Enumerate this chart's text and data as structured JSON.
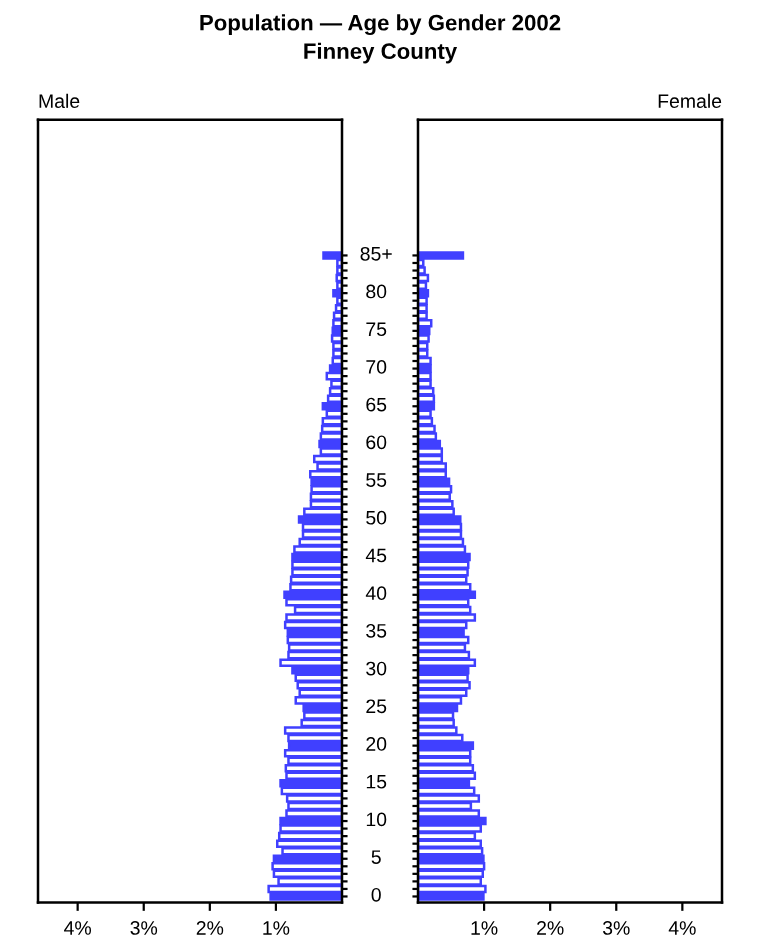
{
  "chart_data": [
    {
      "type": "bar",
      "orientation": "horizontal",
      "title": "Population — Age by Gender 2002",
      "subtitle": "Finney County",
      "annotations": [
        "Male"
      ],
      "categories": [
        "85+",
        null,
        null,
        null,
        null,
        "80",
        null,
        null,
        null,
        null,
        "75",
        null,
        null,
        null,
        null,
        "70",
        null,
        null,
        null,
        null,
        "65",
        null,
        null,
        null,
        null,
        "60",
        null,
        null,
        null,
        null,
        "55",
        null,
        null,
        null,
        null,
        "50",
        null,
        null,
        null,
        null,
        "45",
        null,
        null,
        null,
        null,
        "40",
        null,
        null,
        null,
        null,
        "35",
        null,
        null,
        null,
        null,
        "30",
        null,
        null,
        null,
        null,
        "25",
        null,
        null,
        null,
        null,
        "20",
        null,
        null,
        null,
        null,
        "15",
        null,
        null,
        null,
        null,
        "10",
        null,
        null,
        null,
        null,
        "5",
        null,
        null,
        null,
        null,
        "0"
      ],
      "series": [
        {
          "color": "#4040ff",
          "values": [
            0.28,
            0.07,
            0.07,
            0.08,
            0.07,
            0.13,
            0.07,
            0.09,
            0.12,
            0.13,
            0.14,
            0.15,
            0.13,
            0.13,
            0.14,
            0.18,
            0.23,
            0.16,
            0.18,
            0.21,
            0.29,
            0.23,
            0.29,
            0.3,
            0.32,
            0.34,
            0.32,
            0.42,
            0.37,
            0.48,
            0.46,
            0.46,
            0.47,
            0.47,
            0.57,
            0.65,
            0.59,
            0.59,
            0.64,
            0.72,
            0.75,
            0.75,
            0.75,
            0.77,
            0.78,
            0.87,
            0.84,
            0.71,
            0.84,
            0.86,
            0.82,
            0.82,
            0.8,
            0.81,
            0.93,
            0.75,
            0.7,
            0.67,
            0.64,
            0.7,
            0.58,
            0.57,
            0.61,
            0.86,
            0.81,
            0.8,
            0.86,
            0.81,
            0.85,
            0.84,
            0.93,
            0.91,
            0.83,
            0.81,
            0.84,
            0.93,
            0.93,
            0.95,
            0.98,
            0.9,
            1.03,
            1.05,
            1.03,
            0.96,
            1.11,
            1.08
          ],
          "colors": [
            "#4040ff",
            "#ffffff",
            "#ffffff",
            "#ffffff",
            "#ffffff",
            "#4040ff",
            "#ffffff",
            "#ffffff",
            "#ffffff",
            "#ffffff",
            "#4040ff",
            "#ffffff",
            "#ffffff",
            "#ffffff",
            "#ffffff",
            "#4040ff",
            "#ffffff",
            "#ffffff",
            "#ffffff",
            "#ffffff",
            "#4040ff",
            "#ffffff",
            "#ffffff",
            "#ffffff",
            "#ffffff",
            "#4040ff",
            "#ffffff",
            "#ffffff",
            "#ffffff",
            "#ffffff",
            "#4040ff",
            "#ffffff",
            "#ffffff",
            "#ffffff",
            "#ffffff",
            "#4040ff",
            "#ffffff",
            "#ffffff",
            "#ffffff",
            "#ffffff",
            "#4040ff",
            "#ffffff",
            "#ffffff",
            "#ffffff",
            "#ffffff",
            "#4040ff",
            "#ffffff",
            "#ffffff",
            "#ffffff",
            "#ffffff",
            "#4040ff",
            "#ffffff",
            "#ffffff",
            "#ffffff",
            "#ffffff",
            "#4040ff",
            "#ffffff",
            "#ffffff",
            "#ffffff",
            "#ffffff",
            "#4040ff",
            "#ffffff",
            "#ffffff",
            "#ffffff",
            "#ffffff",
            "#4040ff",
            "#ffffff",
            "#ffffff",
            "#ffffff",
            "#ffffff",
            "#4040ff",
            "#ffffff",
            "#ffffff",
            "#ffffff",
            "#ffffff",
            "#4040ff",
            "#ffffff",
            "#ffffff",
            "#ffffff",
            "#ffffff",
            "#4040ff",
            "#ffffff",
            "#ffffff",
            "#ffffff",
            "#ffffff",
            "#4040ff"
          ]
        }
      ],
      "xlim": [
        4.6,
        0
      ],
      "xticks": [
        {
          "value": 4,
          "label": "4%"
        },
        {
          "value": 3,
          "label": "3%"
        },
        {
          "value": 2,
          "label": "2%"
        },
        {
          "value": 1,
          "label": "1%"
        }
      ],
      "grid": false
    },
    {
      "type": "bar",
      "orientation": "horizontal",
      "annotations": [
        "Female"
      ],
      "tick_labels": "x",
      "categories": [
        null,
        null,
        null,
        null,
        null,
        null,
        null,
        null,
        null,
        null,
        null,
        null,
        null,
        null,
        null,
        null,
        null,
        null,
        null,
        null,
        null,
        null,
        null,
        null,
        null,
        null,
        null,
        null,
        null,
        null,
        null,
        null,
        null,
        null,
        null,
        null,
        null,
        null,
        null,
        null,
        null,
        null,
        null,
        null,
        null,
        null,
        null,
        null,
        null,
        null,
        null,
        null,
        null,
        null,
        null,
        null,
        null,
        null,
        null,
        null,
        null,
        null,
        null,
        null,
        null,
        null,
        null,
        null,
        null,
        null,
        null,
        null,
        null,
        null,
        null,
        null,
        null,
        null,
        null,
        null,
        null,
        null,
        null,
        null,
        null,
        null
      ],
      "series": [
        {
          "color": "#4040ff",
          "values": [
            0.68,
            0.08,
            0.1,
            0.15,
            0.12,
            0.15,
            0.13,
            0.13,
            0.13,
            0.2,
            0.17,
            0.16,
            0.14,
            0.14,
            0.19,
            0.19,
            0.19,
            0.19,
            0.23,
            0.24,
            0.24,
            0.19,
            0.21,
            0.25,
            0.27,
            0.33,
            0.36,
            0.36,
            0.42,
            0.42,
            0.47,
            0.5,
            0.48,
            0.52,
            0.54,
            0.64,
            0.65,
            0.65,
            0.68,
            0.71,
            0.78,
            0.76,
            0.75,
            0.73,
            0.79,
            0.86,
            0.76,
            0.79,
            0.86,
            0.73,
            0.69,
            0.76,
            0.71,
            0.77,
            0.86,
            0.76,
            0.75,
            0.78,
            0.73,
            0.65,
            0.59,
            0.53,
            0.54,
            0.58,
            0.67,
            0.83,
            0.79,
            0.79,
            0.83,
            0.86,
            0.77,
            0.85,
            0.92,
            0.8,
            0.92,
            1.02,
            0.95,
            0.86,
            0.95,
            0.97,
            0.99,
            1.0,
            0.98,
            0.95,
            1.02,
            0.99
          ],
          "colors": [
            "#4040ff",
            "#ffffff",
            "#ffffff",
            "#ffffff",
            "#ffffff",
            "#4040ff",
            "#ffffff",
            "#ffffff",
            "#ffffff",
            "#ffffff",
            "#4040ff",
            "#ffffff",
            "#ffffff",
            "#ffffff",
            "#ffffff",
            "#4040ff",
            "#ffffff",
            "#ffffff",
            "#ffffff",
            "#ffffff",
            "#4040ff",
            "#ffffff",
            "#ffffff",
            "#ffffff",
            "#ffffff",
            "#4040ff",
            "#ffffff",
            "#ffffff",
            "#ffffff",
            "#ffffff",
            "#4040ff",
            "#ffffff",
            "#ffffff",
            "#ffffff",
            "#ffffff",
            "#4040ff",
            "#ffffff",
            "#ffffff",
            "#ffffff",
            "#ffffff",
            "#4040ff",
            "#ffffff",
            "#ffffff",
            "#ffffff",
            "#ffffff",
            "#4040ff",
            "#ffffff",
            "#ffffff",
            "#ffffff",
            "#ffffff",
            "#4040ff",
            "#ffffff",
            "#ffffff",
            "#ffffff",
            "#ffffff",
            "#4040ff",
            "#ffffff",
            "#ffffff",
            "#ffffff",
            "#ffffff",
            "#4040ff",
            "#ffffff",
            "#ffffff",
            "#ffffff",
            "#ffffff",
            "#4040ff",
            "#ffffff",
            "#ffffff",
            "#ffffff",
            "#ffffff",
            "#4040ff",
            "#ffffff",
            "#ffffff",
            "#ffffff",
            "#ffffff",
            "#4040ff",
            "#ffffff",
            "#ffffff",
            "#ffffff",
            "#ffffff",
            "#4040ff",
            "#ffffff",
            "#ffffff",
            "#ffffff",
            "#ffffff",
            "#4040ff"
          ]
        }
      ],
      "xlim": [
        0,
        4.6
      ],
      "xticks": [
        {
          "value": 1,
          "label": "1%"
        },
        {
          "value": 2,
          "label": "2%"
        },
        {
          "value": 3,
          "label": "3%"
        },
        {
          "value": 4,
          "label": "4%"
        }
      ],
      "grid": false
    }
  ]
}
